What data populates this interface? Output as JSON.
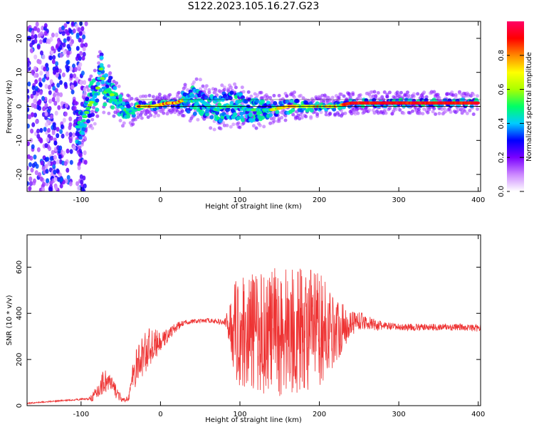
{
  "title": "S122.2023.105.16.27.G23",
  "chart_data": [
    {
      "type": "heatmap",
      "xlabel": "Height of straight line (km)",
      "ylabel": "Frequency (Hz)",
      "xlim": [
        -168,
        403
      ],
      "ylim": [
        -25,
        25
      ],
      "x_ticks": [
        -100,
        0,
        100,
        200,
        300,
        400
      ],
      "x_tick_labels": [
        "-100",
        "0",
        "100",
        "200",
        "300",
        "400"
      ],
      "y_ticks": [
        -20,
        -10,
        0,
        10,
        20
      ],
      "y_tick_labels": [
        "-20",
        "-10",
        "0",
        "10",
        "20"
      ],
      "colorbar": {
        "label": "Normalized spectral amplitude",
        "range": [
          0,
          1
        ],
        "ticks": [
          0.0,
          0.2,
          0.4,
          0.6,
          0.8
        ],
        "tick_labels": [
          "0.0",
          "0.2",
          "0.4",
          "0.6",
          "0.8"
        ],
        "colors": [
          "#ffffff",
          "#cc88ff",
          "#7a00ff",
          "#0000ff",
          "#00ccff",
          "#00ff66",
          "#aaff00",
          "#ffff00",
          "#ff8800",
          "#ff0000",
          "#ff0066"
        ]
      },
      "ridge": {
        "x": [
          -100,
          -95,
          -90,
          -85,
          -80,
          -75,
          -70,
          -65,
          -60,
          -55,
          -50,
          -45,
          -40,
          -35,
          -30,
          -25,
          -20,
          -10,
          0,
          10,
          20,
          30,
          40,
          50,
          60,
          70,
          80,
          90,
          100,
          110,
          120,
          130,
          140,
          150,
          160,
          170,
          180,
          190,
          200,
          210,
          220,
          230,
          240,
          260,
          280,
          300,
          320,
          340,
          360,
          380,
          400
        ],
        "y": [
          -6,
          -3,
          0,
          2,
          4,
          11,
          4,
          5,
          3,
          1,
          0,
          -1,
          -1,
          -2,
          0,
          0,
          0,
          0,
          0.5,
          1,
          1,
          2,
          1.5,
          2,
          0,
          -1,
          0,
          0,
          0,
          -1,
          -1,
          -1,
          -1,
          -0.5,
          0,
          0,
          0,
          0,
          0,
          0,
          0,
          0.5,
          1,
          1,
          1,
          1,
          1,
          1,
          1,
          1,
          1
        ]
      },
      "spread_x": [
        -100,
        -80,
        -60,
        -40,
        -20,
        0,
        20,
        40,
        60,
        80,
        100,
        120,
        140,
        160,
        180,
        200,
        220,
        240,
        260,
        280,
        300,
        320,
        340,
        360,
        380,
        400
      ],
      "spread_hz": [
        5,
        6,
        4,
        2,
        1,
        1,
        1,
        4,
        4,
        4,
        4,
        3,
        2,
        2,
        1.5,
        1,
        1,
        1,
        1,
        1,
        1,
        1,
        1,
        1,
        1,
        1
      ]
    },
    {
      "type": "line",
      "xlabel": "Height of straight line (km)",
      "ylabel": "SNR (10 * v/v)",
      "xlim": [
        -168,
        403
      ],
      "ylim": [
        0,
        740
      ],
      "x_ticks": [
        -100,
        0,
        100,
        200,
        300,
        400
      ],
      "x_tick_labels": [
        "-100",
        "0",
        "100",
        "200",
        "300",
        "400"
      ],
      "y_ticks": [
        0,
        200,
        400,
        600
      ],
      "y_tick_labels": [
        "0",
        "200",
        "400",
        "600"
      ],
      "series": [
        {
          "color": "#ee3333",
          "x": [
            -168,
            -150,
            -130,
            -110,
            -90,
            -80,
            -75,
            -70,
            -65,
            -60,
            -55,
            -50,
            -45,
            -40,
            -35,
            -30,
            -25,
            -20,
            -15,
            -10,
            -5,
            0,
            10,
            20,
            30,
            40,
            50,
            60,
            70,
            80,
            85,
            90,
            95,
            100,
            110,
            120,
            130,
            140,
            150,
            160,
            170,
            180,
            190,
            200,
            210,
            220,
            230,
            240,
            250,
            260,
            270,
            280,
            300,
            320,
            340,
            360,
            380,
            403
          ],
          "y": [
            10,
            15,
            20,
            25,
            30,
            50,
            90,
            110,
            100,
            80,
            60,
            30,
            20,
            40,
            120,
            170,
            200,
            230,
            250,
            260,
            270,
            270,
            310,
            340,
            360,
            365,
            365,
            370,
            365,
            360,
            355,
            340,
            330,
            320,
            320,
            320,
            320,
            320,
            320,
            330,
            330,
            330,
            330,
            330,
            330,
            330,
            340,
            360,
            370,
            360,
            350,
            345,
            340,
            340,
            340,
            340,
            340,
            335
          ],
          "amplitude": [
            3,
            3,
            3,
            3,
            5,
            40,
            50,
            60,
            50,
            40,
            30,
            15,
            10,
            20,
            60,
            80,
            90,
            100,
            90,
            70,
            60,
            40,
            30,
            20,
            10,
            10,
            10,
            10,
            10,
            15,
            60,
            150,
            220,
            240,
            250,
            260,
            270,
            280,
            290,
            290,
            280,
            270,
            260,
            250,
            200,
            150,
            100,
            60,
            40,
            30,
            25,
            20,
            15,
            15,
            15,
            15,
            15,
            15
          ]
        }
      ]
    }
  ]
}
